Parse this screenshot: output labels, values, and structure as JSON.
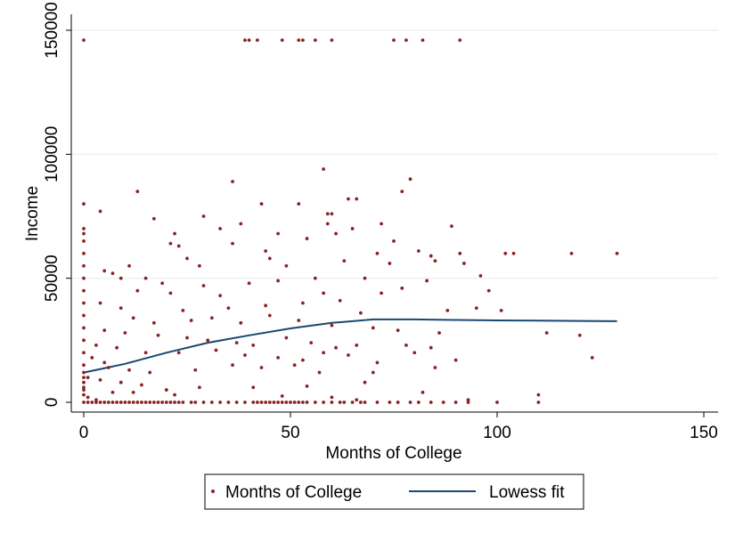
{
  "chart_data": {
    "type": "scatter",
    "title": "",
    "xlabel": "Months of College",
    "ylabel": "Income",
    "xlim": [
      0,
      150
    ],
    "ylim": [
      0,
      150000
    ],
    "x_ticks": [
      0,
      50,
      100,
      150
    ],
    "y_ticks": [
      0,
      50000,
      100000,
      150000
    ],
    "grid": "horizontal",
    "legend_position": "bottom",
    "colors": {
      "points": "#8b2323",
      "lowess": "#1a476f",
      "grid": "#eaf2f3",
      "axis": "#000000"
    },
    "series": [
      {
        "name": "Months of College",
        "kind": "points",
        "points": [
          [
            0,
            146000
          ],
          [
            39,
            146000
          ],
          [
            40,
            146000
          ],
          [
            42,
            146000
          ],
          [
            48,
            146000
          ],
          [
            52,
            146000
          ],
          [
            53,
            146000
          ],
          [
            56,
            146000
          ],
          [
            60,
            146000
          ],
          [
            75,
            146000
          ],
          [
            78,
            146000
          ],
          [
            82,
            146000
          ],
          [
            91,
            146000
          ],
          [
            58,
            94000
          ],
          [
            79,
            90000
          ],
          [
            36,
            89000
          ],
          [
            13,
            85000
          ],
          [
            77,
            85000
          ],
          [
            64,
            82000
          ],
          [
            66,
            82000
          ],
          [
            0,
            80000
          ],
          [
            43,
            80000
          ],
          [
            52,
            80000
          ],
          [
            59,
            76000
          ],
          [
            60,
            76000
          ],
          [
            4,
            77000
          ],
          [
            29,
            75000
          ],
          [
            17,
            74000
          ],
          [
            38,
            72000
          ],
          [
            59,
            72000
          ],
          [
            72,
            72000
          ],
          [
            89,
            71000
          ],
          [
            65,
            70000
          ],
          [
            33,
            70000
          ],
          [
            0,
            70000
          ],
          [
            0,
            68000
          ],
          [
            61,
            68000
          ],
          [
            47,
            68000
          ],
          [
            22,
            68000
          ],
          [
            0,
            65000
          ],
          [
            21,
            64000
          ],
          [
            75,
            65000
          ],
          [
            54,
            66000
          ],
          [
            36,
            64000
          ],
          [
            23,
            63000
          ],
          [
            81,
            61000
          ],
          [
            71,
            60000
          ],
          [
            44,
            61000
          ],
          [
            84,
            59000
          ],
          [
            91,
            60000
          ],
          [
            102,
            60000
          ],
          [
            104,
            60000
          ],
          [
            118,
            60000
          ],
          [
            129,
            60000
          ],
          [
            0,
            60000
          ],
          [
            45,
            58000
          ],
          [
            25,
            58000
          ],
          [
            63,
            57000
          ],
          [
            85,
            57000
          ],
          [
            92,
            56000
          ],
          [
            11,
            55000
          ],
          [
            28,
            55000
          ],
          [
            49,
            55000
          ],
          [
            74,
            56000
          ],
          [
            0,
            55000
          ],
          [
            5,
            53000
          ],
          [
            7,
            52000
          ],
          [
            9,
            50000
          ],
          [
            96,
            51000
          ],
          [
            0,
            50000
          ],
          [
            15,
            50000
          ],
          [
            19,
            48000
          ],
          [
            29,
            47000
          ],
          [
            40,
            48000
          ],
          [
            47,
            49000
          ],
          [
            56,
            50000
          ],
          [
            68,
            50000
          ],
          [
            77,
            46000
          ],
          [
            83,
            49000
          ],
          [
            98,
            45000
          ],
          [
            0,
            45000
          ],
          [
            13,
            45000
          ],
          [
            21,
            44000
          ],
          [
            33,
            43000
          ],
          [
            58,
            44000
          ],
          [
            72,
            44000
          ],
          [
            0,
            40000
          ],
          [
            4,
            40000
          ],
          [
            9,
            38000
          ],
          [
            24,
            37000
          ],
          [
            35,
            38000
          ],
          [
            44,
            39000
          ],
          [
            53,
            40000
          ],
          [
            62,
            41000
          ],
          [
            67,
            36000
          ],
          [
            88,
            37000
          ],
          [
            95,
            38000
          ],
          [
            101,
            37000
          ],
          [
            0,
            35000
          ],
          [
            12,
            34000
          ],
          [
            17,
            32000
          ],
          [
            26,
            33000
          ],
          [
            31,
            34000
          ],
          [
            38,
            32000
          ],
          [
            45,
            35000
          ],
          [
            52,
            33000
          ],
          [
            60,
            31000
          ],
          [
            70,
            30000
          ],
          [
            76,
            29000
          ],
          [
            86,
            28000
          ],
          [
            112,
            28000
          ],
          [
            120,
            27000
          ],
          [
            0,
            30000
          ],
          [
            5,
            29000
          ],
          [
            10,
            28000
          ],
          [
            18,
            27000
          ],
          [
            25,
            26000
          ],
          [
            30,
            25000
          ],
          [
            37,
            24000
          ],
          [
            41,
            23000
          ],
          [
            49,
            26000
          ],
          [
            55,
            24000
          ],
          [
            61,
            22000
          ],
          [
            66,
            23000
          ],
          [
            78,
            23000
          ],
          [
            84,
            22000
          ],
          [
            0,
            25000
          ],
          [
            3,
            23000
          ],
          [
            8,
            22000
          ],
          [
            15,
            20000
          ],
          [
            23,
            20000
          ],
          [
            32,
            21000
          ],
          [
            39,
            19000
          ],
          [
            47,
            18000
          ],
          [
            53,
            17000
          ],
          [
            58,
            20000
          ],
          [
            64,
            19000
          ],
          [
            71,
            16000
          ],
          [
            80,
            20000
          ],
          [
            90,
            17000
          ],
          [
            123,
            18000
          ],
          [
            0,
            20000
          ],
          [
            2,
            18000
          ],
          [
            5,
            16000
          ],
          [
            6,
            14000
          ],
          [
            11,
            13000
          ],
          [
            16,
            12000
          ],
          [
            27,
            13000
          ],
          [
            36,
            15000
          ],
          [
            43,
            14000
          ],
          [
            51,
            15000
          ],
          [
            57,
            12000
          ],
          [
            70,
            12000
          ],
          [
            85,
            14000
          ],
          [
            0,
            15000
          ],
          [
            0,
            12000
          ],
          [
            1,
            10000
          ],
          [
            4,
            9000
          ],
          [
            9,
            8000
          ],
          [
            14,
            7000
          ],
          [
            20,
            5000
          ],
          [
            28,
            6000
          ],
          [
            41,
            6000
          ],
          [
            54,
            6500
          ],
          [
            68,
            8000
          ],
          [
            82,
            4000
          ],
          [
            110,
            3000
          ],
          [
            0,
            10000
          ],
          [
            0,
            8000
          ],
          [
            0,
            6000
          ],
          [
            0,
            3000
          ],
          [
            1,
            2000
          ],
          [
            3,
            1000
          ],
          [
            66,
            1000
          ],
          [
            93,
            1000
          ],
          [
            100,
            0
          ],
          [
            110,
            0
          ],
          [
            0,
            5000
          ],
          [
            7,
            4000
          ],
          [
            12,
            4000
          ],
          [
            22,
            3000
          ],
          [
            48,
            2500
          ],
          [
            60,
            2000
          ],
          [
            0,
            0
          ],
          [
            1,
            0
          ],
          [
            2,
            0
          ],
          [
            3,
            0
          ],
          [
            4,
            0
          ],
          [
            5,
            0
          ],
          [
            6,
            0
          ],
          [
            7,
            0
          ],
          [
            8,
            0
          ],
          [
            9,
            0
          ],
          [
            10,
            0
          ],
          [
            11,
            0
          ],
          [
            12,
            0
          ],
          [
            13,
            0
          ],
          [
            14,
            0
          ],
          [
            15,
            0
          ],
          [
            16,
            0
          ],
          [
            17,
            0
          ],
          [
            18,
            0
          ],
          [
            19,
            0
          ],
          [
            20,
            0
          ],
          [
            21,
            0
          ],
          [
            22,
            0
          ],
          [
            23,
            0
          ],
          [
            24,
            0
          ],
          [
            26,
            0
          ],
          [
            27,
            0
          ],
          [
            29,
            0
          ],
          [
            31,
            0
          ],
          [
            33,
            0
          ],
          [
            35,
            0
          ],
          [
            37,
            0
          ],
          [
            39,
            0
          ],
          [
            41,
            0
          ],
          [
            42,
            0
          ],
          [
            43,
            0
          ],
          [
            44,
            0
          ],
          [
            45,
            0
          ],
          [
            46,
            0
          ],
          [
            47,
            0
          ],
          [
            48,
            0
          ],
          [
            49,
            0
          ],
          [
            50,
            0
          ],
          [
            51,
            0
          ],
          [
            52,
            0
          ],
          [
            53,
            0
          ],
          [
            54,
            0
          ],
          [
            56,
            0
          ],
          [
            58,
            0
          ],
          [
            60,
            0
          ],
          [
            62,
            0
          ],
          [
            63,
            0
          ],
          [
            65,
            0
          ],
          [
            67,
            0
          ],
          [
            68,
            0
          ],
          [
            71,
            0
          ],
          [
            74,
            0
          ],
          [
            76,
            0
          ],
          [
            79,
            0
          ],
          [
            81,
            0
          ],
          [
            84,
            0
          ],
          [
            87,
            0
          ],
          [
            90,
            0
          ],
          [
            93,
            0
          ]
        ]
      },
      {
        "name": "Lowess fit",
        "kind": "line",
        "points": [
          [
            0,
            12000
          ],
          [
            10,
            15500
          ],
          [
            20,
            20000
          ],
          [
            30,
            24000
          ],
          [
            40,
            27000
          ],
          [
            50,
            29800
          ],
          [
            60,
            32000
          ],
          [
            70,
            33400
          ],
          [
            80,
            33400
          ],
          [
            90,
            33200
          ],
          [
            100,
            33000
          ],
          [
            110,
            32900
          ],
          [
            120,
            32800
          ],
          [
            129,
            32700
          ]
        ]
      }
    ]
  }
}
